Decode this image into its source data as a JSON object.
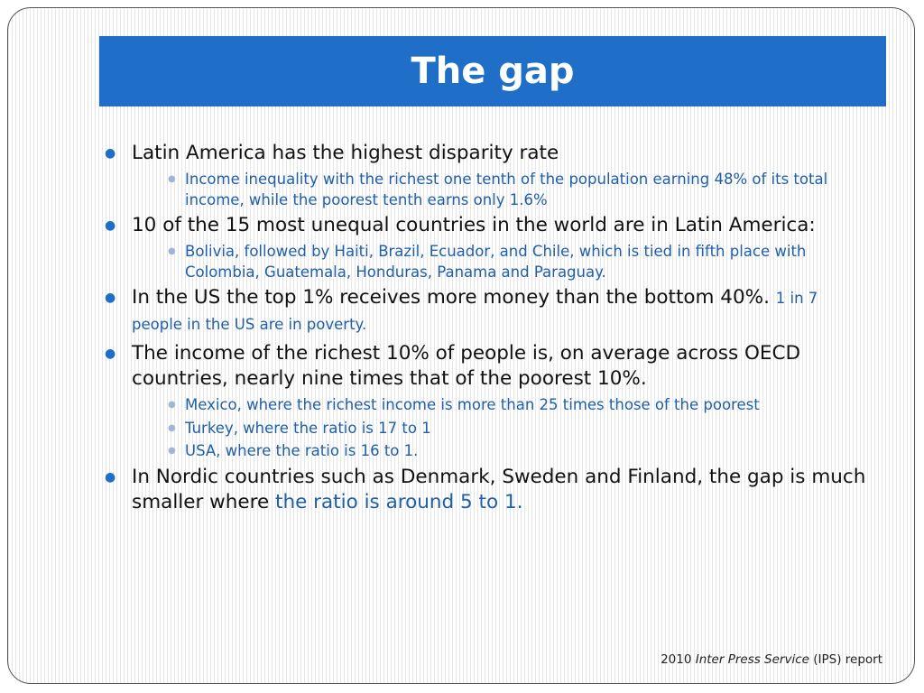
{
  "title": "The gap",
  "items": [
    {
      "text": "Latin America has the highest disparity rate",
      "sub": [
        "Income inequality with the richest one tenth of the population earning 48% of its total income, while the poorest tenth earns only 1.6%"
      ]
    },
    {
      "text": "10 of the 15 most unequal countries in the world are in Latin America:",
      "sub": [
        "Bolivia, followed by Haiti, Brazil, Ecuador, and Chile, which is tied in fifth place with Colombia, Guatemala, Honduras, Panama and Paraguay."
      ]
    },
    {
      "text": "In the US the top 1% receives more money than the bottom 40%.",
      "accent_small": "1 in 7 people in the US are in poverty."
    },
    {
      "text": "The income of the richest 10% of people is, on average across OECD countries, nearly nine times that of the poorest 10%.",
      "sub": [
        "Mexico, where the richest income is more than 25 times those of the poorest",
        "Turkey, where the ratio is 17 to 1",
        "USA, where the ratio is 16 to 1."
      ]
    },
    {
      "text": "In Nordic countries such as Denmark, Sweden and Finland, the gap is much smaller where",
      "accent": "the ratio is around 5 to 1."
    }
  ],
  "footer": {
    "year": "2010",
    "source": "Inter Press Service",
    "suffix": "(IPS) report"
  },
  "colors": {
    "title_bar": "#1f6fc8",
    "sub_text": "#1f5fa8"
  }
}
